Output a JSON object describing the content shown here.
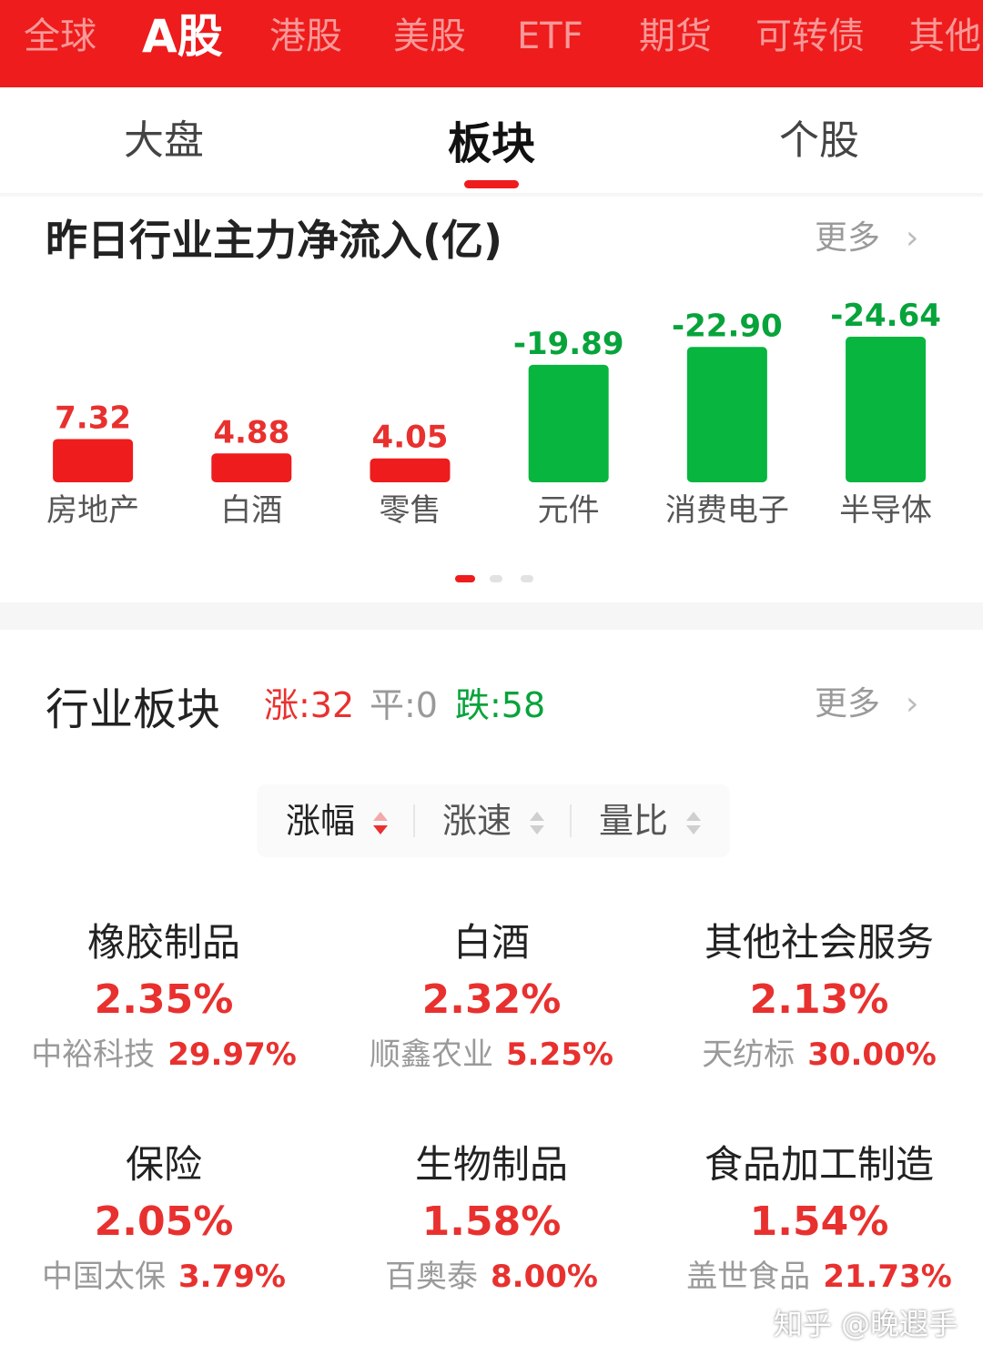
{
  "market_tabs": [
    {
      "label": "全球",
      "active": false
    },
    {
      "label": "A股",
      "active": true
    },
    {
      "label": "港股",
      "active": false
    },
    {
      "label": "美股",
      "active": false
    },
    {
      "label": "ETF",
      "active": false
    },
    {
      "label": "期货",
      "active": false
    },
    {
      "label": "可转债",
      "active": false
    },
    {
      "label": "其他",
      "active": false
    }
  ],
  "sub_tabs": [
    {
      "label": "大盘",
      "active": false
    },
    {
      "label": "板块",
      "active": true
    },
    {
      "label": "个股",
      "active": false
    }
  ],
  "flow_section": {
    "title": "昨日行业主力净流入(亿)",
    "more_label": "更多",
    "pager": {
      "pages": 3,
      "current": 1
    }
  },
  "colors": {
    "up": "#ee1c1c",
    "down": "#07b53f",
    "brand": "#ee1c1c"
  },
  "chart_data": {
    "type": "bar",
    "categories": [
      "房地产",
      "白酒",
      "零售",
      "元件",
      "消费电子",
      "半导体"
    ],
    "values": [
      7.32,
      4.88,
      4.05,
      -19.89,
      -22.9,
      -24.64
    ],
    "value_labels": [
      "7.32",
      "4.88",
      "4.05",
      "-19.89",
      "-22.90",
      "-24.64"
    ],
    "title": "",
    "xlabel": "",
    "ylabel": "",
    "bar_height_by": "absolute value",
    "grid": false
  },
  "industry_section": {
    "title": "行业板块",
    "up_label": "涨:32",
    "flat_label": "平:0",
    "down_label": "跌:58",
    "more_label": "更多",
    "sort_options": [
      {
        "label": "涨幅",
        "active": true
      },
      {
        "label": "涨速",
        "active": false
      },
      {
        "label": "量比",
        "active": false
      }
    ],
    "cards": [
      {
        "name": "橡胶制品",
        "change": "2.35%",
        "leader": "中裕科技",
        "leader_change": "29.97%"
      },
      {
        "name": "白酒",
        "change": "2.32%",
        "leader": "顺鑫农业",
        "leader_change": "5.25%"
      },
      {
        "name": "其他社会服务",
        "change": "2.13%",
        "leader": "天纺标",
        "leader_change": "30.00%"
      },
      {
        "name": "保险",
        "change": "2.05%",
        "leader": "中国太保",
        "leader_change": "3.79%"
      },
      {
        "name": "生物制品",
        "change": "1.58%",
        "leader": "百奥泰",
        "leader_change": "8.00%"
      },
      {
        "name": "食品加工制造",
        "change": "1.54%",
        "leader": "盖世食品",
        "leader_change": "21.73%"
      }
    ]
  },
  "watermark": "知乎 @晚遐手",
  "icons": {
    "more": "chevron-right-icon",
    "sort": "sort-arrows-icon"
  }
}
